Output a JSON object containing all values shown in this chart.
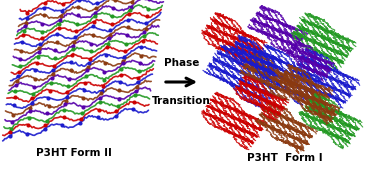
{
  "background_color": "#ffffff",
  "arrow_text_line1": "Phase",
  "arrow_text_line2": "Transition",
  "label_left": "P3HT Form II",
  "label_right": "P3HT  Form I",
  "label_fontsize": 7.5,
  "arrow_fontsize": 7.5,
  "colors_form2": [
    "#cc0000",
    "#1a1acc",
    "#8B3A10",
    "#5500aa",
    "#229922"
  ],
  "colors_form1_red": "#cc0000",
  "colors_form1_blue": "#1a1acc",
  "colors_form1_brown": "#8B3A10",
  "colors_form1_purple": "#5500aa",
  "colors_form1_green": "#229922",
  "fig_width": 3.78,
  "fig_height": 1.73,
  "dpi": 100
}
